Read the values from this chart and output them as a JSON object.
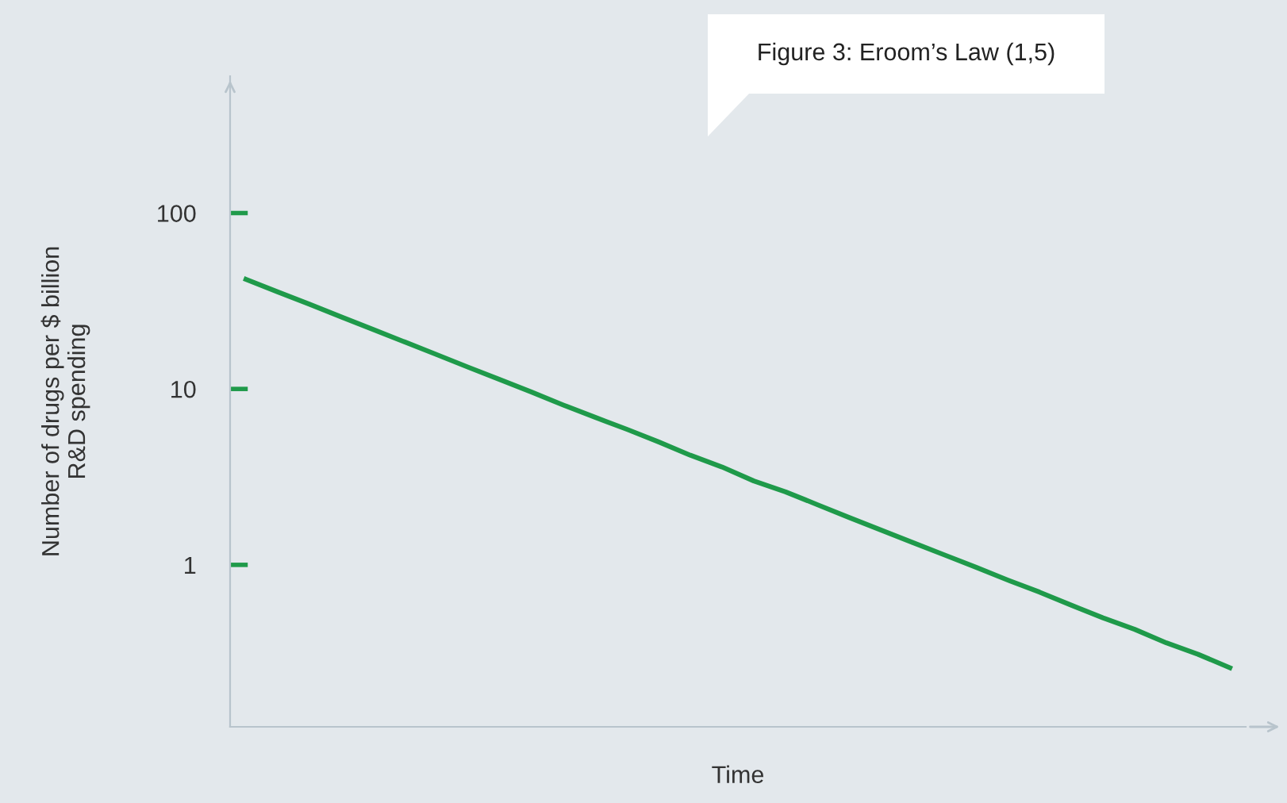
{
  "chart_data": {
    "type": "line",
    "title": "Figure 3: Eroom’s Law (1,5)",
    "xlabel": "Time",
    "ylabel": "Number of drugs per $ billion\nR&D spending",
    "categories": [
      null,
      null,
      null,
      null,
      null,
      null,
      null,
      null,
      null,
      null,
      null,
      null,
      null,
      null,
      null,
      null,
      null,
      null,
      null,
      null,
      null,
      null,
      null,
      null,
      null,
      null,
      null,
      null,
      null,
      null,
      null,
      null
    ],
    "series": [
      {
        "color": "#1f9a4a",
        "values": [
          42,
          35.6,
          30.3,
          25.7,
          21.8,
          18.5,
          15.7,
          13.3,
          11.3,
          9.6,
          8.1,
          6.9,
          5.9,
          5.0,
          4.2,
          3.6,
          3.0,
          2.6,
          2.2,
          1.86,
          1.58,
          1.34,
          1.14,
          0.97,
          0.82,
          0.7,
          0.59,
          0.5,
          0.43,
          0.36,
          0.31,
          0.26
        ]
      }
    ],
    "log": true,
    "ylim": [
      0.12,
      600
    ],
    "yticks": [
      1,
      10,
      100
    ],
    "marker": "none",
    "line_style": "solid"
  }
}
